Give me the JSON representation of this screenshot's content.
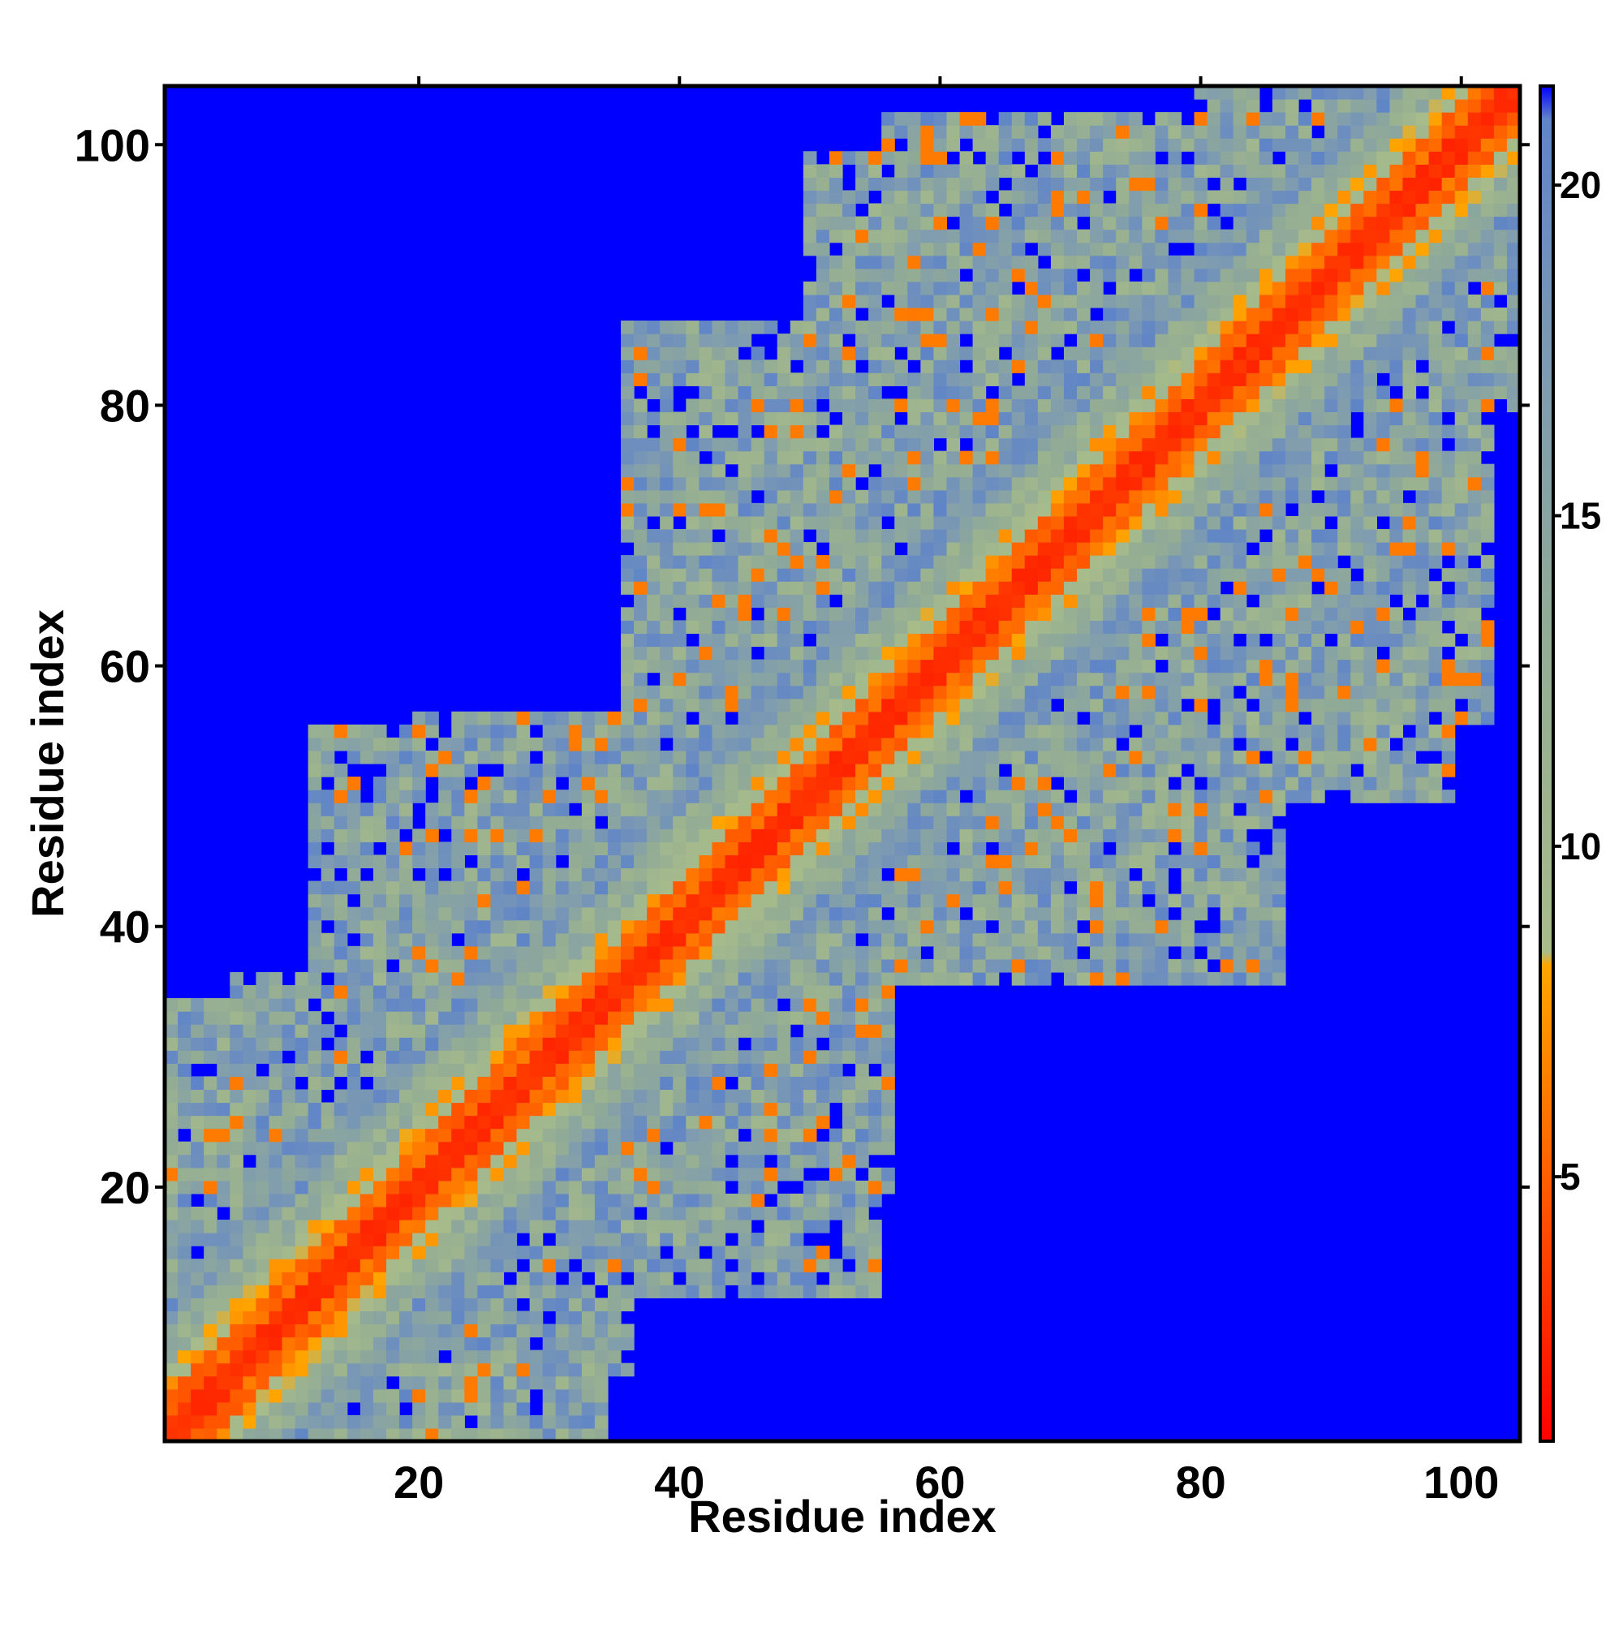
{
  "chart_data": {
    "type": "heatmap",
    "title": "",
    "xlabel": "Residue index",
    "ylabel": "Residue index",
    "xlim": [
      0.5,
      104.5
    ],
    "ylim": [
      0.5,
      104.5
    ],
    "x_ticks": [
      20,
      40,
      60,
      80,
      100
    ],
    "y_ticks": [
      20,
      40,
      60,
      80,
      100
    ],
    "colorbar": {
      "range": [
        1,
        21.5
      ],
      "ticks": [
        5,
        10,
        15,
        20
      ],
      "stops": [
        {
          "value": 1,
          "color": "#ff0000"
        },
        {
          "value": 5.5,
          "color": "#ff6a00"
        },
        {
          "value": 8.2,
          "color": "#ffa500"
        },
        {
          "value": 8.4,
          "color": "#a8bc8a"
        },
        {
          "value": 13,
          "color": "#93ac94"
        },
        {
          "value": 17,
          "color": "#7f9cb0"
        },
        {
          "value": 21,
          "color": "#5f84c8"
        },
        {
          "value": 21.5,
          "color": "#0000ff"
        }
      ]
    },
    "n_residues": 104,
    "cutoff": 21,
    "background_color": "#0000ff",
    "grid": false,
    "regions": [
      {
        "x": [
          1,
          104
        ],
        "y": [
          1,
          104
        ],
        "symmetric": true,
        "description": "main diagonal band"
      },
      {
        "x": [
          6,
          34
        ],
        "y": [
          1,
          36
        ],
        "symmetric": true
      },
      {
        "x": [
          20,
          55
        ],
        "y": [
          12,
          56
        ],
        "symmetric": true
      },
      {
        "x": [
          36,
          82
        ],
        "y": [
          40,
          86
        ],
        "symmetric": true
      },
      {
        "x": [
          50,
          83
        ],
        "y": [
          44,
          82
        ],
        "symmetric": true
      },
      {
        "x": [
          60,
          99
        ],
        "y": [
          50,
          100
        ],
        "symmetric": true
      },
      {
        "x": [
          56,
          93
        ],
        "y": [
          66,
          102
        ],
        "symmetric": true
      },
      {
        "x": [
          80,
          102
        ],
        "y": [
          78,
          104
        ],
        "symmetric": true
      }
    ]
  }
}
